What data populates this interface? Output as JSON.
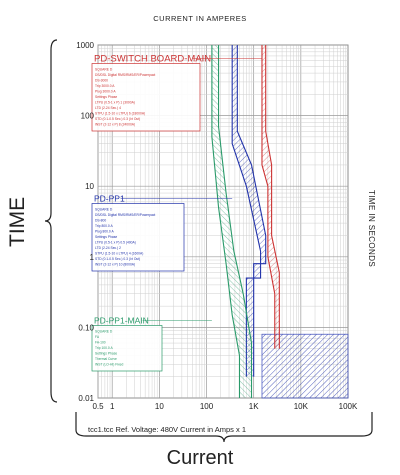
{
  "chart_data": {
    "type": "line",
    "scale": "log-log",
    "title": "CURRENT IN AMPERES",
    "xlabel": "Current",
    "ylabel": "TIME",
    "y2label": "TIME IN SECONDS",
    "footer": "tcc1.tcc    Ref. Voltage: 480V    Current in Amps x 1",
    "xlim": [
      0.5,
      100000
    ],
    "ylim": [
      0.01,
      1000
    ],
    "x_ticks": [
      {
        "value": 0.5,
        "label": "0.5"
      },
      {
        "value": 1,
        "label": "1"
      },
      {
        "value": 10,
        "label": "10"
      },
      {
        "value": 100,
        "label": "100"
      },
      {
        "value": 1000,
        "label": "1K"
      },
      {
        "value": 10000,
        "label": "10K"
      },
      {
        "value": 100000,
        "label": "100K"
      }
    ],
    "y_ticks": [
      {
        "value": 1000,
        "label": "1000"
      },
      {
        "value": 100,
        "label": "100"
      },
      {
        "value": 10,
        "label": "10"
      },
      {
        "value": 1,
        "label": "1"
      },
      {
        "value": 0.1,
        "label": "0.10"
      },
      {
        "value": 0.01,
        "label": "0.01"
      }
    ],
    "grid": true,
    "series": [
      {
        "name": "PD-SWITCH BOARD-MAIN",
        "color": "#cc3333",
        "band_min": [
          [
            1500,
            1000
          ],
          [
            1500,
            20
          ],
          [
            2000,
            10
          ],
          [
            2000,
            1
          ],
          [
            2800,
            0.3
          ],
          [
            2800,
            0.05
          ]
        ],
        "band_max": [
          [
            1800,
            1000
          ],
          [
            1800,
            60
          ],
          [
            2400,
            20
          ],
          [
            2400,
            2
          ],
          [
            3500,
            0.6
          ],
          [
            3500,
            0.05
          ]
        ],
        "label_text": "PD-SWITCH BOARD-MAIN",
        "details": [
          "SQUARE D",
          "DS/DSL Digital RMS/RMS/ER/Powerpact",
          "DS-3000",
          "Trip 3000.0 A",
          "Plug 3000.0 A",
          "Settings Phase",
          "LTPU (0.5-1 x P) 1 (3000A)",
          "LTD (2-24 Sec.) 4",
          "STPU (1.5-10 x LTPU) 6 (18000A)",
          "STD (0.1-0.5 Sec.) 0.3 (I²t Out)",
          "INST (2-12 x P) 8 (24000A)"
        ]
      },
      {
        "name": "PD-PP1",
        "color": "#2233aa",
        "band_min": [
          [
            350,
            1000
          ],
          [
            350,
            40
          ],
          [
            700,
            10
          ],
          [
            1400,
            1.2
          ],
          [
            1400,
            0.5
          ],
          [
            700,
            0.5
          ],
          [
            700,
            0.02
          ]
        ],
        "band_max": [
          [
            450,
            1000
          ],
          [
            450,
            60
          ],
          [
            900,
            20
          ],
          [
            1800,
            2
          ],
          [
            1800,
            0.8
          ],
          [
            1000,
            0.8
          ],
          [
            1000,
            0.02
          ]
        ],
        "label_text": "PD-PP1",
        "details": [
          "SQUARE D",
          "DS/DSL Digital RMS/RMS/ER/Powerpact",
          "DS-800",
          "Trip 800.0 A",
          "Plug 800.0 A",
          "Settings Phase",
          "LTPU (0.5-1 x P) 0.5 (400A)",
          "LTD (2-24 Sec.) 2",
          "STPU (1.5-10 x LTPU) 4 (1600A)",
          "STD (0.1-0.5 Sec.) 0.3 (I²t Out)",
          "INST (2-12 x P) 10 (8000A)"
        ]
      },
      {
        "name": "PD-PP1-MAIN",
        "color": "#2a9a6a",
        "band_min": [
          [
            130,
            1000
          ],
          [
            130,
            50
          ],
          [
            180,
            5
          ],
          [
            260,
            0.8
          ],
          [
            350,
            0.15
          ],
          [
            500,
            0.04
          ],
          [
            500,
            0.01
          ]
        ],
        "band_max": [
          [
            180,
            1000
          ],
          [
            180,
            70
          ],
          [
            260,
            8
          ],
          [
            380,
            1.2
          ],
          [
            600,
            0.3
          ],
          [
            900,
            0.06
          ],
          [
            900,
            0.01
          ]
        ],
        "label_text": "PD-PP1-MAIN",
        "details": [
          "SQUARE D",
          "FA",
          "FA-100",
          "Trip 100.0 A",
          "Settings Phase",
          "Thermal Curve",
          "INST (LO-HI) Fixed"
        ]
      }
    ],
    "fault_zone": {
      "x_range": [
        1500,
        100000
      ],
      "y_range": [
        0.01,
        0.08
      ],
      "color": "#3344bb"
    }
  }
}
